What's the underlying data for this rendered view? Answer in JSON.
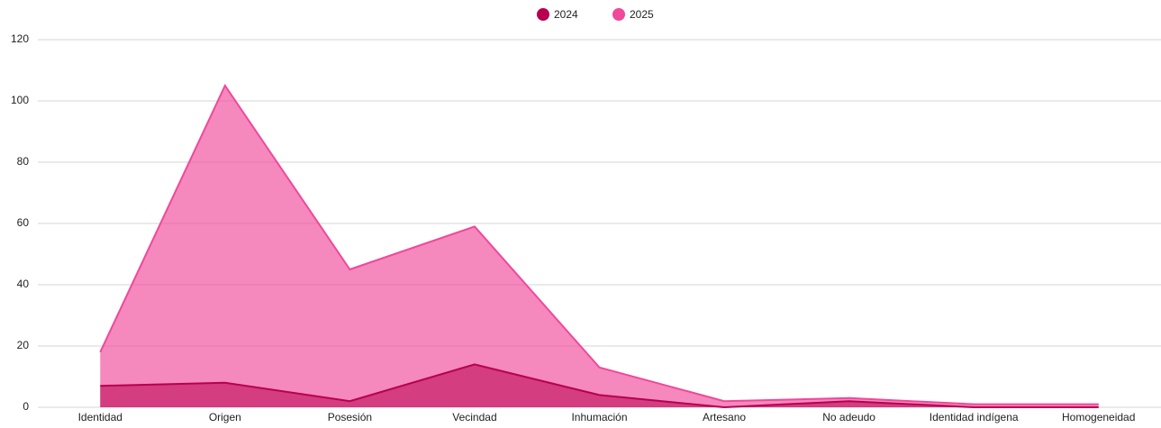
{
  "chart_data": {
    "type": "area",
    "categories": [
      "Identidad",
      "Origen",
      "Posesión",
      "Vecindad",
      "Inhumación",
      "Artesano",
      "No adeudo",
      "Identidad indígena",
      "Homogeneidad"
    ],
    "series": [
      {
        "name": "2024",
        "color": "#b8004f",
        "values": [
          7,
          8,
          2,
          14,
          4,
          0,
          2,
          0,
          0
        ]
      },
      {
        "name": "2025",
        "color": "#f0489a",
        "values": [
          18,
          105,
          45,
          59,
          13,
          2,
          3,
          1,
          1
        ]
      }
    ],
    "ylim": [
      0,
      120
    ],
    "yticks": [
      0,
      20,
      40,
      60,
      80,
      100,
      120
    ],
    "grid": true,
    "legend": "top"
  }
}
